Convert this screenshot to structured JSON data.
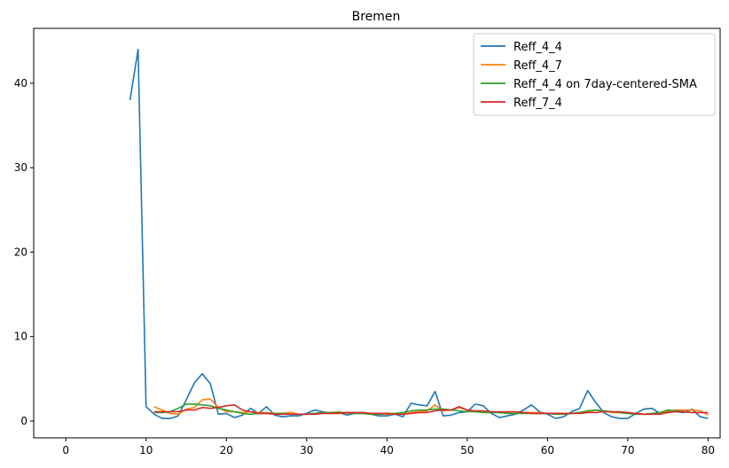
{
  "chart_data": {
    "type": "line",
    "title": "Bremen",
    "xlabel": "",
    "ylabel": "",
    "xlim": [
      -4,
      81.5
    ],
    "ylim": [
      -2,
      46.5
    ],
    "xticks": [
      0,
      10,
      20,
      30,
      40,
      50,
      60,
      70,
      80
    ],
    "yticks": [
      0,
      10,
      20,
      30,
      40
    ],
    "grid": false,
    "legend_position": "top-right",
    "series": [
      {
        "name": "Reff_4_4",
        "color": "#1f77b4",
        "x": [
          8,
          9,
          10,
          11,
          12,
          13,
          14,
          15,
          16,
          17,
          18,
          19,
          20,
          21,
          22,
          23,
          24,
          25,
          26,
          27,
          28,
          29,
          30,
          31,
          32,
          33,
          34,
          35,
          36,
          37,
          38,
          39,
          40,
          41,
          42,
          43,
          44,
          45,
          46,
          47,
          48,
          49,
          50,
          51,
          52,
          53,
          54,
          55,
          56,
          57,
          58,
          59,
          60,
          61,
          62,
          63,
          64,
          65,
          66,
          67,
          68,
          69,
          70,
          71,
          72,
          73,
          74,
          75,
          76,
          77,
          78,
          79,
          80
        ],
        "y": [
          38.0,
          44.0,
          1.7,
          0.8,
          0.3,
          0.3,
          0.6,
          2.5,
          4.5,
          5.6,
          4.4,
          0.8,
          0.9,
          0.4,
          0.7,
          1.5,
          0.9,
          1.7,
          0.7,
          0.5,
          0.6,
          0.6,
          0.9,
          1.3,
          1.1,
          0.9,
          1.0,
          0.7,
          0.9,
          0.9,
          0.8,
          0.6,
          0.6,
          0.8,
          0.5,
          2.1,
          1.9,
          1.8,
          3.5,
          0.6,
          0.7,
          1.0,
          1.1,
          2.0,
          1.8,
          0.9,
          0.4,
          0.6,
          0.8,
          1.3,
          1.9,
          1.1,
          0.8,
          0.3,
          0.5,
          1.1,
          1.5,
          3.6,
          2.2,
          1.0,
          0.5,
          0.3,
          0.3,
          0.9,
          1.4,
          1.5,
          0.9,
          1.2,
          1.1,
          1.0,
          1.4,
          0.5,
          0.3
        ]
      },
      {
        "name": "Reff_4_7",
        "color": "#ff7f0e",
        "x": [
          11,
          12,
          13,
          14,
          15,
          16,
          17,
          18,
          19,
          20,
          21,
          22,
          23,
          24,
          25,
          26,
          27,
          28,
          29,
          30,
          31,
          32,
          33,
          34,
          35,
          36,
          37,
          38,
          39,
          40,
          41,
          42,
          43,
          44,
          45,
          46,
          47,
          48,
          49,
          50,
          51,
          52,
          53,
          54,
          55,
          56,
          57,
          58,
          59,
          60,
          61,
          62,
          63,
          64,
          65,
          66,
          67,
          68,
          69,
          70,
          71,
          72,
          73,
          74,
          75,
          76,
          77,
          78,
          79,
          80
        ],
        "y": [
          1.7,
          1.3,
          0.9,
          0.8,
          1.4,
          1.6,
          2.5,
          2.6,
          1.6,
          1.1,
          1.1,
          1.0,
          1.1,
          1.0,
          1.0,
          0.9,
          0.9,
          1.0,
          0.8,
          0.8,
          0.9,
          1.0,
          1.0,
          1.1,
          0.9,
          1.0,
          0.9,
          0.8,
          0.8,
          0.8,
          0.8,
          0.8,
          1.0,
          1.1,
          1.2,
          1.9,
          1.2,
          1.3,
          1.6,
          1.3,
          1.1,
          1.1,
          1.1,
          1.0,
          1.0,
          0.9,
          1.0,
          1.0,
          1.0,
          0.9,
          0.9,
          0.9,
          0.9,
          1.0,
          1.1,
          1.3,
          1.2,
          1.0,
          1.0,
          0.9,
          0.9,
          0.8,
          0.8,
          0.9,
          1.1,
          1.3,
          1.3,
          1.3,
          1.2,
          0.7
        ]
      },
      {
        "name": "Reff_4_4 on 7day-centered-SMA",
        "color": "#2ca02c",
        "x": [
          11,
          12,
          13,
          14,
          15,
          16,
          17,
          18,
          19,
          20,
          21,
          22,
          23,
          24,
          25,
          26,
          27,
          28,
          29,
          30,
          31,
          32,
          33,
          34,
          35,
          36,
          37,
          38,
          39,
          40,
          41,
          42,
          43,
          44,
          45,
          46,
          47,
          48,
          49,
          50,
          51,
          52,
          53,
          54,
          55,
          56,
          57,
          58,
          59,
          60,
          61,
          62,
          63,
          64,
          65,
          66,
          67,
          68,
          69,
          70,
          71,
          72,
          73,
          74,
          75,
          76,
          77,
          78
        ],
        "y": [
          1.0,
          1.0,
          1.1,
          1.5,
          2.0,
          2.0,
          1.9,
          1.8,
          1.5,
          1.3,
          1.1,
          0.9,
          0.8,
          0.9,
          0.9,
          0.9,
          0.9,
          0.8,
          0.8,
          0.8,
          0.9,
          1.0,
          1.0,
          1.0,
          1.0,
          0.9,
          0.9,
          0.8,
          0.8,
          0.9,
          0.9,
          1.0,
          1.2,
          1.3,
          1.3,
          1.4,
          1.4,
          1.3,
          1.2,
          1.1,
          1.1,
          1.0,
          1.0,
          1.0,
          0.9,
          0.9,
          0.9,
          0.9,
          0.9,
          0.9,
          0.8,
          0.8,
          0.9,
          1.0,
          1.2,
          1.3,
          1.2,
          1.1,
          1.0,
          0.9,
          0.8,
          0.8,
          0.9,
          1.0,
          1.3,
          1.2,
          1.1,
          1.0
        ]
      },
      {
        "name": "Reff_7_4",
        "color": "#d62728",
        "x": [
          11,
          12,
          13,
          14,
          15,
          16,
          17,
          18,
          19,
          20,
          21,
          22,
          23,
          24,
          25,
          26,
          27,
          28,
          29,
          30,
          31,
          32,
          33,
          34,
          35,
          36,
          37,
          38,
          39,
          40,
          41,
          42,
          43,
          44,
          45,
          46,
          47,
          48,
          49,
          50,
          51,
          52,
          53,
          54,
          55,
          56,
          57,
          58,
          59,
          60,
          61,
          62,
          63,
          64,
          65,
          66,
          67,
          68,
          69,
          70,
          71,
          72,
          73,
          74,
          75,
          76,
          77,
          78,
          79,
          80
        ],
        "y": [
          1.1,
          1.1,
          1.1,
          1.1,
          1.3,
          1.3,
          1.6,
          1.5,
          1.6,
          1.8,
          1.9,
          1.3,
          1.1,
          0.9,
          0.9,
          0.8,
          0.8,
          0.8,
          0.8,
          0.8,
          0.8,
          0.9,
          0.9,
          0.9,
          1.0,
          1.0,
          1.0,
          0.9,
          0.9,
          0.9,
          0.8,
          0.8,
          0.9,
          1.0,
          1.0,
          1.2,
          1.3,
          1.3,
          1.7,
          1.3,
          1.2,
          1.2,
          1.1,
          1.1,
          1.1,
          1.1,
          1.0,
          0.9,
          0.9,
          0.9,
          0.9,
          0.9,
          0.9,
          0.9,
          1.0,
          1.0,
          1.1,
          1.1,
          1.1,
          1.0,
          0.9,
          0.8,
          0.8,
          0.8,
          1.0,
          1.1,
          1.1,
          1.0,
          1.0,
          1.0
        ]
      }
    ]
  }
}
